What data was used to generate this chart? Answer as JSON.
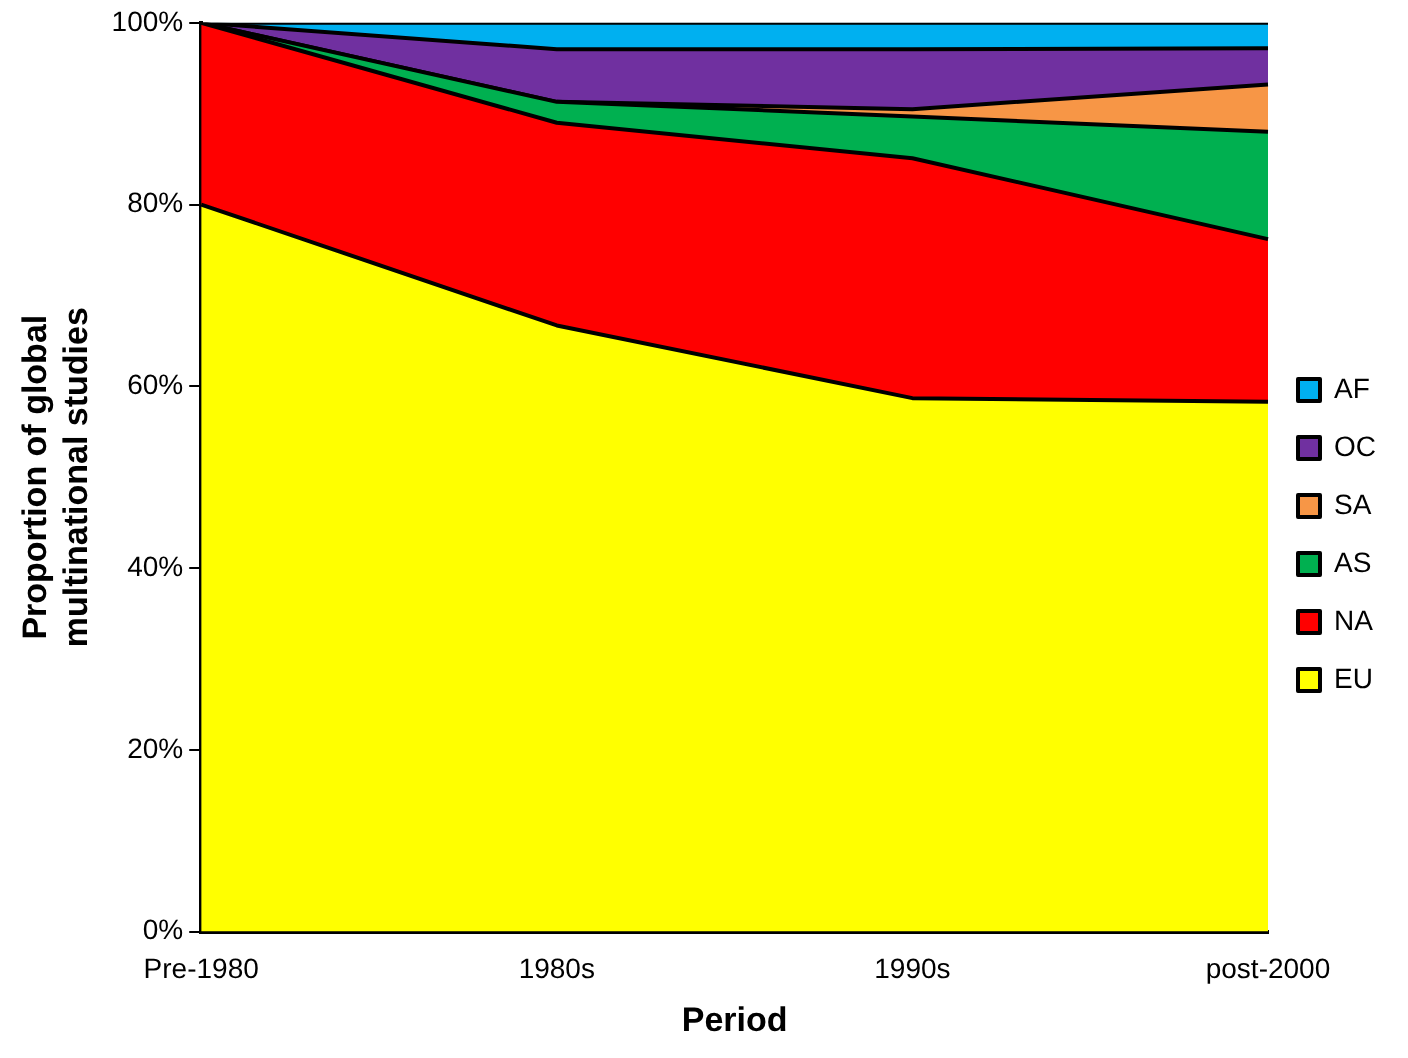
{
  "chart_data": {
    "type": "area",
    "stacked": true,
    "xlabel": "Period",
    "ylabel": "Proportion of global multinational studies",
    "categories": [
      "Pre-1980",
      "1980s",
      "1990s",
      "post-2000"
    ],
    "series": [
      {
        "name": "EU",
        "color": "#ffff00",
        "values": [
          80,
          66.7,
          58.7,
          58.3
        ]
      },
      {
        "name": "NA",
        "color": "#ff0000",
        "values": [
          20,
          22.3,
          26.4,
          17.9
        ]
      },
      {
        "name": "AS",
        "color": "#00b050",
        "values": [
          0,
          2.3,
          4.6,
          11.8
        ]
      },
      {
        "name": "SA",
        "color": "#f79646",
        "values": [
          0,
          0,
          0.8,
          5.2
        ]
      },
      {
        "name": "OC",
        "color": "#7030a0",
        "values": [
          0,
          5.8,
          6.6,
          4.0
        ]
      },
      {
        "name": "AF",
        "color": "#00b0f0",
        "values": [
          0,
          2.9,
          2.9,
          2.8
        ]
      }
    ],
    "ylim": [
      0,
      100
    ],
    "yticks": [
      {
        "value": 0,
        "label": "0%"
      },
      {
        "value": 20,
        "label": "20%"
      },
      {
        "value": 40,
        "label": "40%"
      },
      {
        "value": 60,
        "label": "60%"
      },
      {
        "value": 80,
        "label": "80%"
      },
      {
        "value": 100,
        "label": "100%"
      }
    ],
    "grid": false,
    "legend": "right"
  }
}
